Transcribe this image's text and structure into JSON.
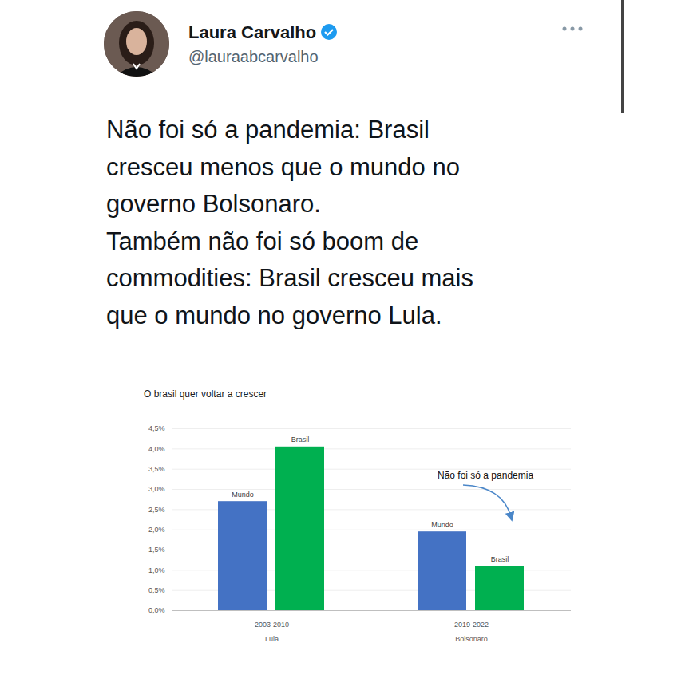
{
  "tweet": {
    "author": "Laura Carvalho",
    "handle": "@lauraabcarvalho",
    "text": [
      "Não foi só a pandemia: Brasil",
      "cresceu menos que o mundo no",
      "governo Bolsonaro.",
      "Também não foi só boom de",
      "commodities: Brasil cresceu mais",
      "que o mundo no governo Lula."
    ]
  },
  "chart_data": {
    "type": "bar",
    "title": "O brasil quer voltar a crescer",
    "categories": [
      "2003-2010",
      "2019-2022"
    ],
    "category_groups": [
      "Lula",
      "Bolsonaro"
    ],
    "series": [
      {
        "name": "Mundo",
        "color": "#4472c4",
        "values": [
          2.7,
          1.95
        ]
      },
      {
        "name": "Brasil",
        "color": "#00b050",
        "values": [
          4.05,
          1.1
        ]
      }
    ],
    "ylim": [
      0,
      4.5
    ],
    "yticks": [
      {
        "value": 0,
        "label": "0,0%"
      },
      {
        "value": 0.5,
        "label": "0,5%"
      },
      {
        "value": 1,
        "label": "1,0%"
      },
      {
        "value": 1.5,
        "label": "1,5%"
      },
      {
        "value": 2,
        "label": "2,0%"
      },
      {
        "value": 2.5,
        "label": "2,5%"
      },
      {
        "value": 3,
        "label": "3,0%"
      },
      {
        "value": 3.5,
        "label": "3,5%"
      },
      {
        "value": 4,
        "label": "4,0%"
      },
      {
        "value": 4.5,
        "label": "4,5%"
      }
    ],
    "grid": true,
    "annotations": [
      {
        "text": "Não foi só a pandemia"
      }
    ]
  }
}
